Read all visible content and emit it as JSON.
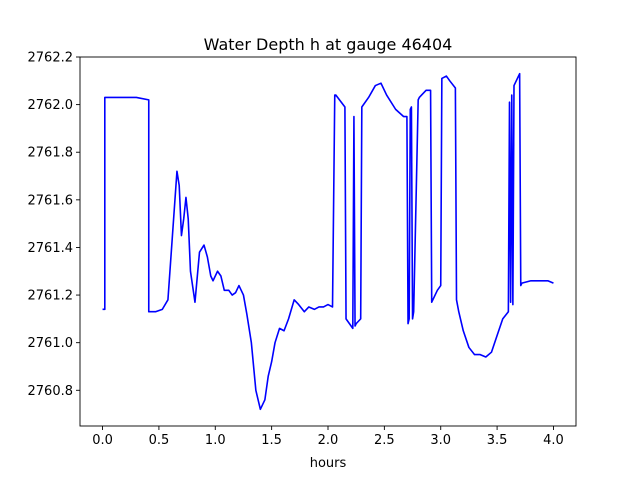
{
  "chart_data": {
    "type": "line",
    "title": "Water Depth h at gauge 46404",
    "xlabel": "hours",
    "ylabel": "",
    "xlim": [
      -0.2,
      4.2
    ],
    "ylim": [
      2760.65,
      2762.2
    ],
    "grid": false,
    "xticks": [
      0.0,
      0.5,
      1.0,
      1.5,
      2.0,
      2.5,
      3.0,
      3.5,
      4.0
    ],
    "xtick_labels": [
      "0.0",
      "0.5",
      "1.0",
      "1.5",
      "2.0",
      "2.5",
      "3.0",
      "3.5",
      "4.0"
    ],
    "yticks": [
      2760.8,
      2761.0,
      2761.2,
      2761.4,
      2761.6,
      2761.8,
      2762.0,
      2762.2
    ],
    "ytick_labels": [
      "2760.8",
      "2761.0",
      "2761.2",
      "2761.4",
      "2761.6",
      "2761.8",
      "2762.0",
      "2762.2"
    ],
    "series": [
      {
        "color": "#0000ff",
        "x": [
          0.0,
          0.02,
          0.02,
          0.15,
          0.3,
          0.41,
          0.41,
          0.47,
          0.53,
          0.58,
          0.62,
          0.66,
          0.68,
          0.7,
          0.72,
          0.74,
          0.76,
          0.78,
          0.82,
          0.86,
          0.9,
          0.93,
          0.96,
          0.98,
          1.02,
          1.05,
          1.08,
          1.12,
          1.15,
          1.18,
          1.21,
          1.25,
          1.28,
          1.32,
          1.36,
          1.4,
          1.44,
          1.47,
          1.5,
          1.53,
          1.57,
          1.61,
          1.65,
          1.7,
          1.74,
          1.79,
          1.83,
          1.88,
          1.92,
          1.96,
          2.0,
          2.04,
          2.06,
          2.07,
          2.15,
          2.16,
          2.22,
          2.23,
          2.24,
          2.25,
          2.29,
          2.3,
          2.36,
          2.42,
          2.47,
          2.52,
          2.6,
          2.67,
          2.7,
          2.71,
          2.72,
          2.73,
          2.74,
          2.75,
          2.76,
          2.8,
          2.81,
          2.87,
          2.91,
          2.92,
          2.97,
          3.0,
          3.01,
          3.05,
          3.08,
          3.13,
          3.14,
          3.16,
          3.2,
          3.25,
          3.3,
          3.35,
          3.4,
          3.45,
          3.5,
          3.55,
          3.6,
          3.61,
          3.62,
          3.63,
          3.64,
          3.65,
          3.7,
          3.71,
          3.72,
          3.8,
          3.88,
          3.95,
          4.0
        ],
        "y": [
          2761.14,
          2761.14,
          2762.03,
          2762.03,
          2762.03,
          2762.02,
          2761.13,
          2761.13,
          2761.14,
          2761.18,
          2761.45,
          2761.72,
          2761.66,
          2761.45,
          2761.52,
          2761.61,
          2761.52,
          2761.3,
          2761.17,
          2761.38,
          2761.41,
          2761.36,
          2761.28,
          2761.26,
          2761.3,
          2761.28,
          2761.22,
          2761.22,
          2761.2,
          2761.21,
          2761.24,
          2761.2,
          2761.12,
          2761.0,
          2760.8,
          2760.72,
          2760.76,
          2760.86,
          2760.92,
          2761.0,
          2761.06,
          2761.05,
          2761.1,
          2761.18,
          2761.16,
          2761.13,
          2761.15,
          2761.14,
          2761.15,
          2761.15,
          2761.16,
          2761.15,
          2762.04,
          2762.04,
          2761.99,
          2761.1,
          2761.06,
          2761.95,
          2761.07,
          2761.08,
          2761.1,
          2761.99,
          2762.03,
          2762.08,
          2762.09,
          2762.04,
          2761.98,
          2761.95,
          2761.95,
          2761.08,
          2761.1,
          2761.98,
          2761.99,
          2761.1,
          2761.13,
          2762.02,
          2762.03,
          2762.06,
          2762.06,
          2761.17,
          2761.22,
          2761.24,
          2762.11,
          2762.12,
          2762.1,
          2762.07,
          2761.18,
          2761.13,
          2761.05,
          2760.98,
          2760.95,
          2760.95,
          2760.94,
          2760.96,
          2761.03,
          2761.1,
          2761.13,
          2762.01,
          2761.17,
          2762.04,
          2761.16,
          2762.08,
          2762.13,
          2761.24,
          2761.25,
          2761.26,
          2761.26,
          2761.26,
          2761.25
        ]
      }
    ]
  }
}
